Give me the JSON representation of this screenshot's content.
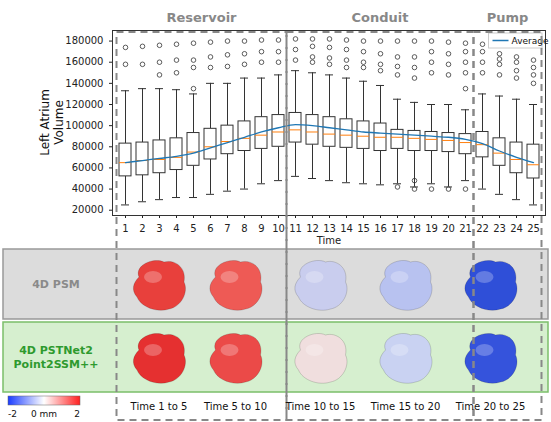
{
  "chart_data": {
    "type": "box",
    "x_label": "Time",
    "y_label": "Left Atrium Volume",
    "categories": [
      1,
      2,
      3,
      4,
      5,
      6,
      7,
      8,
      9,
      10,
      11,
      12,
      13,
      14,
      15,
      16,
      17,
      18,
      19,
      20,
      21,
      22,
      23,
      24,
      25
    ],
    "low": [
      25000,
      28000,
      30000,
      32000,
      32000,
      35000,
      38000,
      40000,
      45000,
      48000,
      52000,
      50000,
      48000,
      46000,
      45000,
      44000,
      45000,
      42000,
      45000,
      42000,
      48000,
      40000,
      35000,
      30000,
      25000
    ],
    "q1": [
      52000,
      53000,
      55000,
      58000,
      62000,
      68000,
      73000,
      76000,
      78000,
      80000,
      84000,
      82000,
      80000,
      79000,
      78000,
      76000,
      78000,
      76000,
      76000,
      75000,
      73000,
      70000,
      62000,
      55000,
      50000
    ],
    "median": [
      65000,
      67000,
      68000,
      70000,
      75000,
      80000,
      85000,
      88000,
      91000,
      94000,
      96000,
      94000,
      92000,
      91000,
      90000,
      89000,
      89000,
      88000,
      87000,
      86000,
      84000,
      82000,
      74000,
      68000,
      63000
    ],
    "q3": [
      83000,
      84000,
      86000,
      88000,
      93000,
      97000,
      100000,
      104000,
      108000,
      110000,
      112000,
      110000,
      108000,
      106000,
      104000,
      102000,
      96000,
      95000,
      94000,
      93000,
      92000,
      94000,
      88000,
      84000,
      82000
    ],
    "high": [
      133000,
      135000,
      135000,
      134000,
      130000,
      140000,
      140000,
      145000,
      145000,
      148000,
      152000,
      150000,
      148000,
      145000,
      142000,
      138000,
      125000,
      122000,
      120000,
      120000,
      115000,
      130000,
      128000,
      125000,
      120000
    ],
    "outliers": [
      [
        158000,
        174000
      ],
      [
        158000,
        175000
      ],
      [
        148000,
        160000,
        176000
      ],
      [
        150000,
        162000,
        177000
      ],
      [
        135000,
        155000,
        162000,
        178000
      ],
      [
        155000,
        165000,
        179000
      ],
      [
        156000,
        167000,
        180000
      ],
      [
        158000,
        168000,
        180000
      ],
      [
        160000,
        170000,
        181000
      ],
      [
        160000,
        170000,
        181000
      ],
      [
        162000,
        172000,
        182000
      ],
      [
        160000,
        165000,
        175000,
        182000
      ],
      [
        158000,
        164000,
        174000,
        182000
      ],
      [
        155000,
        162000,
        172000,
        181000
      ],
      [
        155000,
        160000,
        170000,
        180000
      ],
      [
        152000,
        158000,
        168000,
        180000
      ],
      [
        42000,
        148000,
        156000,
        165000,
        180000
      ],
      [
        40000,
        48000,
        145000,
        155000,
        165000,
        180000
      ],
      [
        40000,
        150000,
        160000,
        170000,
        180000
      ],
      [
        40000,
        148000,
        158000,
        168000,
        179000
      ],
      [
        40000,
        135000,
        150000,
        160000,
        170000,
        178000
      ],
      [
        150000,
        160000,
        170000,
        177000
      ],
      [
        148000,
        158000,
        163000,
        168000
      ],
      [
        145000,
        152000,
        160000,
        165000
      ],
      [
        140000,
        148000,
        155000,
        162000
      ]
    ],
    "series": [
      {
        "name": "Average",
        "color": "#1f77b4",
        "values": [
          65000,
          67000,
          69000,
          71000,
          74000,
          79000,
          84000,
          89000,
          94000,
          98000,
          101000,
          100000,
          98000,
          96000,
          94000,
          93000,
          92000,
          91000,
          90000,
          89000,
          87000,
          83000,
          76000,
          70000,
          65000
        ]
      }
    ],
    "ylim": [
      15000,
      190000
    ],
    "yticks": [
      20000,
      40000,
      60000,
      80000,
      100000,
      120000,
      140000,
      160000,
      180000
    ],
    "legend": "top-right",
    "phases": [
      {
        "name": "Reservoir",
        "times": [
          1,
          10
        ]
      },
      {
        "name": "Conduit",
        "times": [
          11,
          21
        ]
      },
      {
        "name": "Pump",
        "times": [
          22,
          25
        ]
      }
    ]
  },
  "panels": {
    "rows": [
      {
        "label": "4D PSM",
        "colors": [
          "#e8403c",
          "#ee5a55",
          "#c9cdee",
          "#b8c2f0",
          "#2f4fd8"
        ]
      },
      {
        "label": "4D PSTNet2 Point2SSM++",
        "colors": [
          "#e53030",
          "#eb4a48",
          "#f0dede",
          "#c9d2f2",
          "#3553dc"
        ]
      }
    ],
    "columns": [
      {
        "label": "Time 1 to 5",
        "times": [
          1,
          5
        ]
      },
      {
        "label": "Time 5 to 10",
        "times": [
          5,
          10
        ]
      },
      {
        "label": "Time 10 to 15",
        "times": [
          10,
          15
        ]
      },
      {
        "label": "Time 15 to 20",
        "times": [
          15,
          20
        ]
      },
      {
        "label": "Time 20 to 25",
        "times": [
          20,
          25
        ]
      }
    ],
    "colorbar": {
      "range": [
        -2,
        2
      ],
      "ticks": [
        -2,
        {
          "value": 0,
          "label": "0 mm"
        },
        2
      ]
    }
  }
}
